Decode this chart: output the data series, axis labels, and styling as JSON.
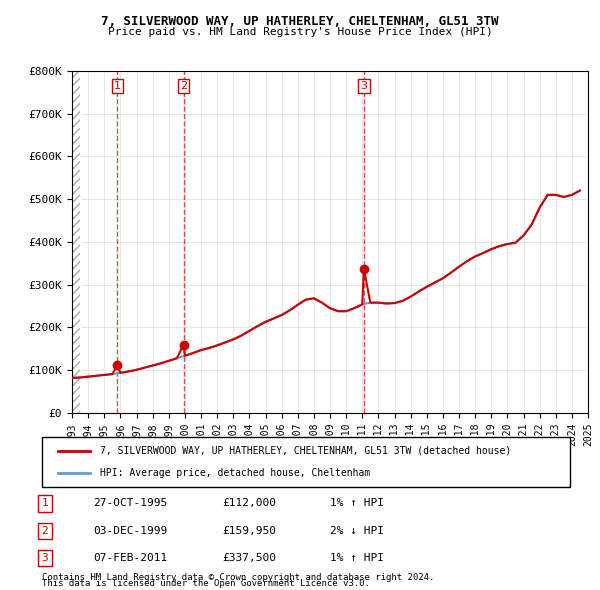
{
  "title": "7, SILVERWOOD WAY, UP HATHERLEY, CHELTENHAM, GL51 3TW",
  "subtitle": "Price paid vs. HM Land Registry's House Price Index (HPI)",
  "legend_label_red": "7, SILVERWOOD WAY, UP HATHERLEY, CHELTENHAM, GL51 3TW (detached house)",
  "legend_label_blue": "HPI: Average price, detached house, Cheltenham",
  "footer1": "Contains HM Land Registry data © Crown copyright and database right 2024.",
  "footer2": "This data is licensed under the Open Government Licence v3.0.",
  "sale_points": [
    {
      "num": 1,
      "year": 1995.82,
      "price": 112000,
      "date": "27-OCT-1995",
      "pct": "1%",
      "dir": "↑"
    },
    {
      "num": 2,
      "year": 1999.92,
      "price": 159950,
      "date": "03-DEC-1999",
      "pct": "2%",
      "dir": "↓"
    },
    {
      "num": 3,
      "year": 2011.1,
      "price": 337500,
      "date": "07-FEB-2011",
      "pct": "1%",
      "dir": "↑"
    }
  ],
  "table_rows": [
    {
      "num": 1,
      "date": "27-OCT-1995",
      "price": "£112,000",
      "hpi": "1% ↑ HPI"
    },
    {
      "num": 2,
      "date": "03-DEC-1999",
      "price": "£159,950",
      "hpi": "2% ↓ HPI"
    },
    {
      "num": 3,
      "date": "07-FEB-2011",
      "price": "£337,500",
      "hpi": "1% ↑ HPI"
    }
  ],
  "xlim": [
    1993,
    2025
  ],
  "ylim": [
    0,
    800000
  ],
  "yticks": [
    0,
    100000,
    200000,
    300000,
    400000,
    500000,
    600000,
    700000,
    800000
  ],
  "ytick_labels": [
    "£0",
    "£100K",
    "£200K",
    "£300K",
    "£400K",
    "£500K",
    "£600K",
    "£700K",
    "£800K"
  ],
  "xticks": [
    1993,
    1994,
    1995,
    1996,
    1997,
    1998,
    1999,
    2000,
    2001,
    2002,
    2003,
    2004,
    2005,
    2006,
    2007,
    2008,
    2009,
    2010,
    2011,
    2012,
    2013,
    2014,
    2015,
    2016,
    2017,
    2018,
    2019,
    2020,
    2021,
    2022,
    2023,
    2024,
    2025
  ],
  "red_color": "#cc0000",
  "blue_color": "#6699cc",
  "hatch_color": "#cccccc",
  "grid_color": "#dddddd",
  "bg_color": "#ffffff",
  "hpi_years": [
    1993,
    1993.5,
    1994,
    1994.5,
    1995,
    1995.5,
    1996,
    1996.5,
    1997,
    1997.5,
    1998,
    1998.5,
    1999,
    1999.5,
    2000,
    2000.5,
    2001,
    2001.5,
    2002,
    2002.5,
    2003,
    2003.5,
    2004,
    2004.5,
    2005,
    2005.5,
    2006,
    2006.5,
    2007,
    2007.5,
    2008,
    2008.5,
    2009,
    2009.5,
    2010,
    2010.5,
    2011,
    2011.5,
    2012,
    2012.5,
    2013,
    2013.5,
    2014,
    2014.5,
    2015,
    2015.5,
    2016,
    2016.5,
    2017,
    2017.5,
    2018,
    2018.5,
    2019,
    2019.5,
    2020,
    2020.5,
    2021,
    2021.5,
    2022,
    2022.5,
    2023,
    2023.5,
    2024,
    2024.5
  ],
  "hpi_values": [
    82000,
    83000,
    85000,
    87000,
    89000,
    91000,
    94000,
    97000,
    101000,
    106000,
    111000,
    116000,
    122000,
    128000,
    134000,
    140000,
    147000,
    152000,
    158000,
    165000,
    172000,
    181000,
    192000,
    203000,
    213000,
    221000,
    229000,
    240000,
    253000,
    265000,
    268000,
    258000,
    245000,
    238000,
    238000,
    245000,
    254000,
    258000,
    258000,
    256000,
    257000,
    262000,
    272000,
    284000,
    295000,
    305000,
    315000,
    328000,
    342000,
    355000,
    366000,
    374000,
    383000,
    390000,
    395000,
    398000,
    415000,
    440000,
    480000,
    510000,
    510000,
    505000,
    510000,
    520000
  ],
  "price_years": [
    1993,
    1993.5,
    1994,
    1994.5,
    1995,
    1995.5,
    1995.82,
    1996,
    1996.5,
    1997,
    1997.5,
    1998,
    1998.5,
    1999,
    1999.5,
    1999.92,
    2000,
    2000.5,
    2001,
    2001.5,
    2002,
    2002.5,
    2003,
    2003.5,
    2004,
    2004.5,
    2005,
    2005.5,
    2006,
    2006.5,
    2007,
    2007.5,
    2008,
    2008.5,
    2009,
    2009.5,
    2010,
    2010.5,
    2011,
    2011.1,
    2011.5,
    2012,
    2012.5,
    2013,
    2013.5,
    2014,
    2014.5,
    2015,
    2015.5,
    2016,
    2016.5,
    2017,
    2017.5,
    2018,
    2018.5,
    2019,
    2019.5,
    2020,
    2020.5,
    2021,
    2021.5,
    2022,
    2022.5,
    2023,
    2023.5,
    2024,
    2024.5
  ],
  "price_values": [
    82000,
    83000,
    85000,
    87000,
    89000,
    91000,
    112000,
    94000,
    97000,
    101000,
    106000,
    111000,
    116000,
    122000,
    128000,
    159950,
    134000,
    140000,
    147000,
    152000,
    158000,
    165000,
    172000,
    181000,
    192000,
    203000,
    213000,
    221000,
    229000,
    240000,
    253000,
    265000,
    268000,
    258000,
    245000,
    238000,
    238000,
    245000,
    254000,
    337500,
    258000,
    258000,
    256000,
    257000,
    262000,
    272000,
    284000,
    295000,
    305000,
    315000,
    328000,
    342000,
    355000,
    366000,
    374000,
    383000,
    390000,
    395000,
    398000,
    415000,
    440000,
    480000,
    510000,
    510000,
    505000,
    510000,
    520000
  ]
}
